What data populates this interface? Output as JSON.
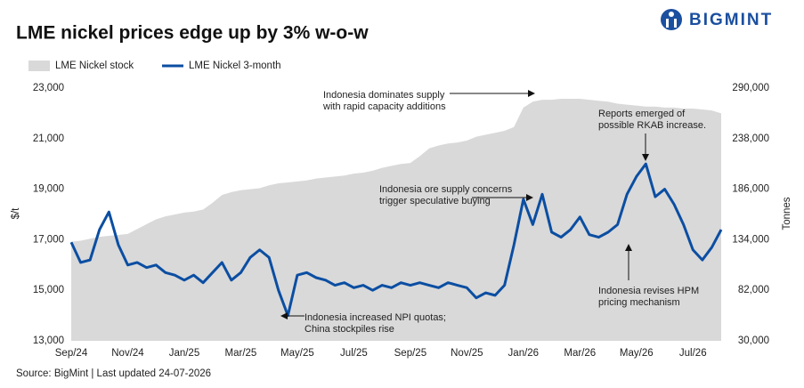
{
  "chart_data": {
    "type": "line",
    "title": "LME nickel prices edge up by 3% w-o-w",
    "brand": "BIGMINT",
    "source": "Source: BigMint | Last updated 24-07-2026",
    "y_label": "$/t",
    "y2_label": "Tonnes",
    "categories": [
      "Sep/24",
      null,
      null,
      null,
      null,
      null,
      "Nov/24",
      null,
      null,
      null,
      null,
      null,
      "Jan/25",
      null,
      null,
      null,
      null,
      null,
      "Mar/25",
      null,
      null,
      null,
      null,
      null,
      "May/25",
      null,
      null,
      null,
      null,
      null,
      "Jul/25",
      null,
      null,
      null,
      null,
      null,
      "Sep/25",
      null,
      null,
      null,
      null,
      null,
      "Nov/25",
      null,
      null,
      null,
      null,
      null,
      "Jan/26",
      null,
      null,
      null,
      null,
      null,
      "Mar/26",
      null,
      null,
      null,
      null,
      null,
      "May/26",
      null,
      null,
      null,
      null,
      null,
      "Jul/26",
      null,
      null,
      null
    ],
    "series": [
      {
        "name": "LME Nickel stock",
        "kind": "area",
        "axis": "y2",
        "color": "#d9d9d9",
        "values": [
          132000,
          133000,
          135000,
          137000,
          138000,
          139000,
          140000,
          145000,
          150000,
          155000,
          158000,
          160000,
          162000,
          163000,
          165000,
          172000,
          180000,
          183000,
          185000,
          186000,
          187000,
          190000,
          192000,
          193000,
          194000,
          195000,
          197000,
          198000,
          199000,
          200000,
          202000,
          203000,
          205000,
          208000,
          210000,
          212000,
          213000,
          220000,
          228000,
          231000,
          233000,
          234000,
          236000,
          240000,
          242000,
          244000,
          246000,
          250000,
          270000,
          276000,
          278000,
          278000,
          279000,
          279000,
          279000,
          278000,
          277000,
          276000,
          274000,
          273000,
          272000,
          271000,
          271000,
          270000,
          270000,
          269000,
          269000,
          268000,
          267000,
          264000
        ]
      },
      {
        "name": "LME Nickel 3-month",
        "kind": "line",
        "color": "#0b4ea2",
        "values": [
          16900,
          16100,
          16200,
          17400,
          18100,
          16800,
          16000,
          16100,
          15900,
          16000,
          15700,
          15600,
          15400,
          15600,
          15300,
          15700,
          16100,
          15400,
          15700,
          16300,
          16600,
          16300,
          15000,
          14000,
          15600,
          15700,
          15500,
          15400,
          15200,
          15300,
          15100,
          15200,
          15000,
          15200,
          15100,
          15300,
          15200,
          15300,
          15200,
          15100,
          15300,
          15200,
          15100,
          14700,
          14900,
          14800,
          15200,
          16800,
          18600,
          17600,
          18800,
          17300,
          17100,
          17400,
          17900,
          17200,
          17100,
          17300,
          17600,
          18800,
          19500,
          20000,
          18700,
          19000,
          18400,
          17600,
          16600,
          16200,
          16700,
          17400
        ]
      }
    ],
    "ylim": [
      13000,
      23000
    ],
    "yticks": [
      {
        "value": 13000,
        "label": "13,000"
      },
      {
        "value": 15000,
        "label": "15,000"
      },
      {
        "value": 17000,
        "label": "17,000"
      },
      {
        "value": 19000,
        "label": "19,000"
      },
      {
        "value": 21000,
        "label": "21,000"
      },
      {
        "value": 23000,
        "label": "23,000"
      }
    ],
    "y2lim": [
      30000,
      290000
    ],
    "y2ticks": [
      {
        "value": 30000,
        "label": "30,000"
      },
      {
        "value": 82000,
        "label": "82,000"
      },
      {
        "value": 134000,
        "label": "134,000"
      },
      {
        "value": 186000,
        "label": "186,000"
      },
      {
        "value": 238000,
        "label": "238,000"
      },
      {
        "value": 290000,
        "label": "290,000"
      }
    ],
    "annotations": [
      {
        "lines": [
          "Indonesia dominates supply",
          "with rapid capacity additions"
        ]
      },
      {
        "lines": [
          "Reports emerged of",
          "possible RKAB increase."
        ]
      },
      {
        "lines": [
          "Indonesia ore supply concerns",
          "trigger speculative buying"
        ]
      },
      {
        "lines": [
          "Indonesia revises HPM",
          "pricing mechanism"
        ]
      },
      {
        "lines": [
          "Indonesia increased NPI quotas;",
          "China stockpiles rise"
        ]
      }
    ]
  }
}
